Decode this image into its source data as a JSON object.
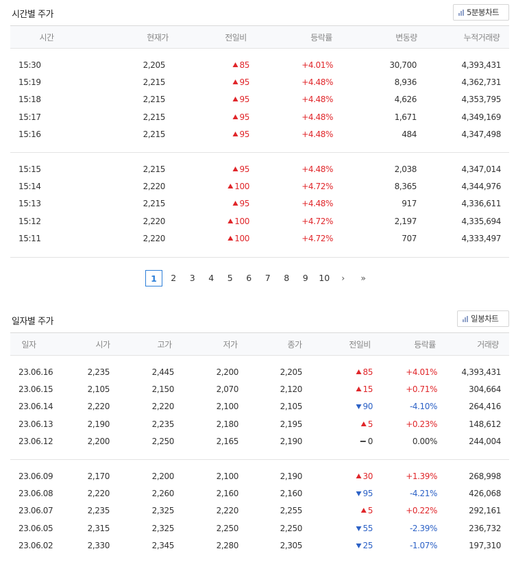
{
  "intraday": {
    "title": "시간별 주가",
    "chart_button": "5분봉차트",
    "headers": [
      "시간",
      "현재가",
      "전일비",
      "등락률",
      "변동량",
      "누적거래량"
    ],
    "groups": [
      [
        {
          "time": "15:30",
          "price": "2,205",
          "change": "85",
          "dir": "up",
          "rate": "+4.01%",
          "volume": "30,700",
          "cumulative": "4,393,431"
        },
        {
          "time": "15:19",
          "price": "2,215",
          "change": "95",
          "dir": "up",
          "rate": "+4.48%",
          "volume": "8,936",
          "cumulative": "4,362,731"
        },
        {
          "time": "15:18",
          "price": "2,215",
          "change": "95",
          "dir": "up",
          "rate": "+4.48%",
          "volume": "4,626",
          "cumulative": "4,353,795"
        },
        {
          "time": "15:17",
          "price": "2,215",
          "change": "95",
          "dir": "up",
          "rate": "+4.48%",
          "volume": "1,671",
          "cumulative": "4,349,169"
        },
        {
          "time": "15:16",
          "price": "2,215",
          "change": "95",
          "dir": "up",
          "rate": "+4.48%",
          "volume": "484",
          "cumulative": "4,347,498"
        }
      ],
      [
        {
          "time": "15:15",
          "price": "2,215",
          "change": "95",
          "dir": "up",
          "rate": "+4.48%",
          "volume": "2,038",
          "cumulative": "4,347,014"
        },
        {
          "time": "15:14",
          "price": "2,220",
          "change": "100",
          "dir": "up",
          "rate": "+4.72%",
          "volume": "8,365",
          "cumulative": "4,344,976"
        },
        {
          "time": "15:13",
          "price": "2,215",
          "change": "95",
          "dir": "up",
          "rate": "+4.48%",
          "volume": "917",
          "cumulative": "4,336,611"
        },
        {
          "time": "15:12",
          "price": "2,220",
          "change": "100",
          "dir": "up",
          "rate": "+4.72%",
          "volume": "2,197",
          "cumulative": "4,335,694"
        },
        {
          "time": "15:11",
          "price": "2,220",
          "change": "100",
          "dir": "up",
          "rate": "+4.72%",
          "volume": "707",
          "cumulative": "4,333,497"
        }
      ]
    ]
  },
  "pagination": {
    "pages": [
      "1",
      "2",
      "3",
      "4",
      "5",
      "6",
      "7",
      "8",
      "9",
      "10"
    ],
    "active": "1",
    "next": "›",
    "last": "»"
  },
  "daily": {
    "title": "일자별 주가",
    "chart_button": "일봉차트",
    "headers": [
      "일자",
      "시가",
      "고가",
      "저가",
      "종가",
      "전일비",
      "등락률",
      "거래량"
    ],
    "groups": [
      [
        {
          "date": "23.06.16",
          "open": "2,235",
          "high": "2,445",
          "low": "2,200",
          "close": "2,205",
          "change": "85",
          "dir": "up",
          "rate": "+4.01%",
          "volume": "4,393,431"
        },
        {
          "date": "23.06.15",
          "open": "2,105",
          "high": "2,150",
          "low": "2,070",
          "close": "2,120",
          "change": "15",
          "dir": "up",
          "rate": "+0.71%",
          "volume": "304,664"
        },
        {
          "date": "23.06.14",
          "open": "2,220",
          "high": "2,220",
          "low": "2,100",
          "close": "2,105",
          "change": "90",
          "dir": "down",
          "rate": "-4.10%",
          "volume": "264,416"
        },
        {
          "date": "23.06.13",
          "open": "2,190",
          "high": "2,235",
          "low": "2,180",
          "close": "2,195",
          "change": "5",
          "dir": "up",
          "rate": "+0.23%",
          "volume": "148,612"
        },
        {
          "date": "23.06.12",
          "open": "2,200",
          "high": "2,250",
          "low": "2,165",
          "close": "2,190",
          "change": "0",
          "dir": "flat",
          "rate": "0.00%",
          "volume": "244,004"
        }
      ],
      [
        {
          "date": "23.06.09",
          "open": "2,170",
          "high": "2,200",
          "low": "2,100",
          "close": "2,190",
          "change": "30",
          "dir": "up",
          "rate": "+1.39%",
          "volume": "268,998"
        },
        {
          "date": "23.06.08",
          "open": "2,220",
          "high": "2,260",
          "low": "2,160",
          "close": "2,160",
          "change": "95",
          "dir": "down",
          "rate": "-4.21%",
          "volume": "426,068"
        },
        {
          "date": "23.06.07",
          "open": "2,235",
          "high": "2,325",
          "low": "2,220",
          "close": "2,255",
          "change": "5",
          "dir": "up",
          "rate": "+0.22%",
          "volume": "292,161"
        },
        {
          "date": "23.06.05",
          "open": "2,315",
          "high": "2,325",
          "low": "2,250",
          "close": "2,250",
          "change": "55",
          "dir": "down",
          "rate": "-2.39%",
          "volume": "236,732"
        },
        {
          "date": "23.06.02",
          "open": "2,330",
          "high": "2,345",
          "low": "2,280",
          "close": "2,305",
          "change": "25",
          "dir": "down",
          "rate": "-1.07%",
          "volume": "197,310"
        }
      ]
    ]
  },
  "colors": {
    "up": "#e0262a",
    "down": "#2d62c6",
    "accent": "#2d7fd8"
  },
  "icons": {
    "chart_button": "bar-chart-icon"
  }
}
